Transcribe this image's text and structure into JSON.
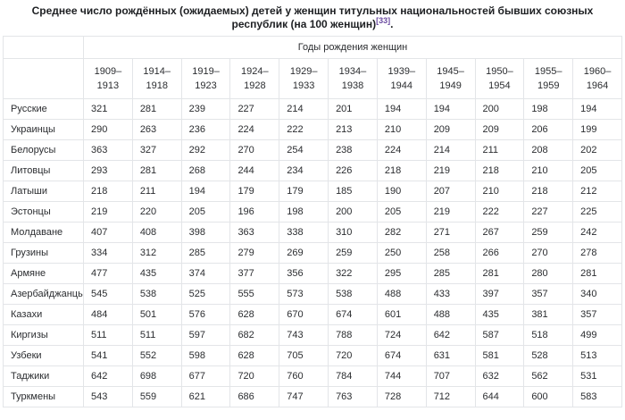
{
  "title": {
    "line1": "Среднее число рождённых (ожидаемых) детей у женщин титульных национальностей бывших союзных республик",
    "line2_prefix": "(на 100 женщин)",
    "ref": "[33]",
    "suffix": "."
  },
  "colors": {
    "reference_link": "#6b4ba1",
    "table_border": "#e3e5e8",
    "text": "#26282b"
  },
  "table": {
    "group_header": "Годы рождения женщин",
    "columns": [
      "1909–1913",
      "1914–1918",
      "1919–1923",
      "1924–1928",
      "1929–1933",
      "1934–1938",
      "1939–1944",
      "1945–1949",
      "1950–1954",
      "1955–1959",
      "1960–1964"
    ],
    "rows": [
      {
        "label": "Русские",
        "values": [
          "321",
          "281",
          "239",
          "227",
          "214",
          "201",
          "194",
          "194",
          "200",
          "198",
          "194"
        ]
      },
      {
        "label": "Украинцы",
        "values": [
          "290",
          "263",
          "236",
          "224",
          "222",
          "213",
          "210",
          "209",
          "209",
          "206",
          "199"
        ]
      },
      {
        "label": "Белорусы",
        "values": [
          "363",
          "327",
          "292",
          "270",
          "254",
          "238",
          "224",
          "214",
          "211",
          "208",
          "202"
        ]
      },
      {
        "label": "Литовцы",
        "values": [
          "293",
          "281",
          "268",
          "244",
          "234",
          "226",
          "218",
          "219",
          "218",
          "210",
          "205"
        ]
      },
      {
        "label": "Латыши",
        "values": [
          "218",
          "211",
          "194",
          "179",
          "179",
          "185",
          "190",
          "207",
          "210",
          "218",
          "212"
        ]
      },
      {
        "label": "Эстонцы",
        "values": [
          "219",
          "220",
          "205",
          "196",
          "198",
          "200",
          "205",
          "219",
          "222",
          "227",
          "225"
        ]
      },
      {
        "label": "Молдаване",
        "values": [
          "407",
          "408",
          "398",
          "363",
          "338",
          "310",
          "282",
          "271",
          "267",
          "259",
          "242"
        ]
      },
      {
        "label": "Грузины",
        "values": [
          "334",
          "312",
          "285",
          "279",
          "269",
          "259",
          "250",
          "258",
          "266",
          "270",
          "278"
        ]
      },
      {
        "label": "Армяне",
        "values": [
          "477",
          "435",
          "374",
          "377",
          "356",
          "322",
          "295",
          "285",
          "281",
          "280",
          "281"
        ]
      },
      {
        "label": "Азербайджанцы",
        "values": [
          "545",
          "538",
          "525",
          "555",
          "573",
          "538",
          "488",
          "433",
          "397",
          "357",
          "340"
        ]
      },
      {
        "label": "Казахи",
        "values": [
          "484",
          "501",
          "576",
          "628",
          "670",
          "674",
          "601",
          "488",
          "435",
          "381",
          "357"
        ]
      },
      {
        "label": "Киргизы",
        "values": [
          "511",
          "511",
          "597",
          "682",
          "743",
          "788",
          "724",
          "642",
          "587",
          "518",
          "499"
        ]
      },
      {
        "label": "Узбеки",
        "values": [
          "541",
          "552",
          "598",
          "628",
          "705",
          "720",
          "674",
          "631",
          "581",
          "528",
          "513"
        ]
      },
      {
        "label": "Таджики",
        "values": [
          "642",
          "698",
          "677",
          "720",
          "760",
          "784",
          "744",
          "707",
          "632",
          "562",
          "531"
        ]
      },
      {
        "label": "Туркмены",
        "values": [
          "543",
          "559",
          "621",
          "686",
          "747",
          "763",
          "728",
          "712",
          "644",
          "600",
          "583"
        ]
      }
    ]
  }
}
